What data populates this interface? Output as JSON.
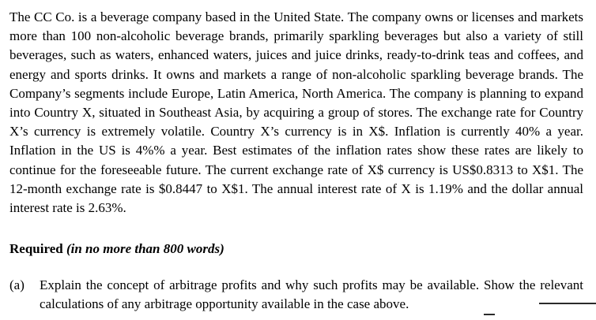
{
  "document": {
    "paragraph": "The CC Co. is a beverage company based in the United State. The company owns or licenses and markets more than 100 non-alcoholic beverage brands, primarily sparkling beverages but also a variety of still beverages, such as waters, enhanced waters, juices and juice drinks, ready-to-drink teas and coffees, and energy and sports drinks. It owns and markets a range of non-alcoholic sparkling beverage brands. The Company’s segments include Europe, Latin America, North America.  The company is planning to expand into Country X, situated in Southeast Asia, by acquiring a group of stores. The exchange rate for Country X’s currency is extremely volatile. Country X’s currency is in X$. Inflation is currently 40% a year. Inflation in the US is 4%% a year. Best estimates of the inflation rates show these rates are likely to continue for the foreseeable future. The current exchange rate of X$ currency is US$0.8313 to X$1. The 12-month exchange rate is $0.8447 to X$1. The annual interest rate of X is 1.19% and the dollar annual interest rate is 2.63%.",
    "required_label": "Required",
    "required_note": " (in no more than 800 words)",
    "item_a": {
      "label": "(a)",
      "text": "Explain the concept of arbitrage profits and why such profits may be available. Show the relevant calculations of any arbitrage opportunity available in the case above."
    }
  }
}
